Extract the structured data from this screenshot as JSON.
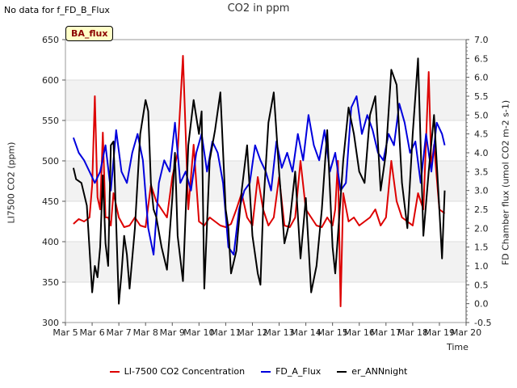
{
  "annotations": {
    "no_data": "No data for f_FD_B_Flux",
    "badge": "BA_flux"
  },
  "chart_data": {
    "type": "line",
    "title": "CO2 in ppm",
    "xlabel": "Time",
    "ylabel_left": "LI7500 CO2 (ppm)",
    "ylabel_right": "FD Chamber flux (umol CO2 m-2 s-1)",
    "x_ticks": [
      "Mar 5",
      "Mar 6",
      "Mar 7",
      "Mar 8",
      "Mar 9",
      "Mar 10",
      "Mar 11",
      "Mar 12",
      "Mar 13",
      "Mar 14",
      "Mar 15",
      "Mar 16",
      "Mar 17",
      "Mar 18",
      "Mar 19",
      "Mar 20"
    ],
    "x_range_days": [
      5,
      20
    ],
    "ylim_left": [
      300,
      650
    ],
    "yticks_left": [
      300,
      350,
      400,
      450,
      500,
      550,
      600,
      650
    ],
    "ylim_right": [
      -0.5,
      7.0
    ],
    "yticks_right": [
      "-0.5",
      "0.0",
      "0.5",
      "1.0",
      "1.5",
      "2.0",
      "2.5",
      "3.0",
      "3.5",
      "4.0",
      "4.5",
      "5.0",
      "5.5",
      "6.0",
      "6.5",
      "7.0"
    ],
    "grid": true,
    "legend_position": "bottom",
    "series": [
      {
        "name": "LI-7500 CO2 Concentration",
        "axis": "left",
        "color": "#dd0000",
        "x": [
          5.3,
          5.5,
          5.7,
          5.9,
          6.0,
          6.1,
          6.2,
          6.3,
          6.4,
          6.5,
          6.6,
          6.7,
          6.8,
          7.0,
          7.2,
          7.4,
          7.6,
          7.8,
          8.0,
          8.2,
          8.4,
          8.6,
          8.8,
          9.0,
          9.2,
          9.4,
          9.6,
          9.8,
          10.0,
          10.2,
          10.4,
          10.6,
          10.8,
          11.0,
          11.2,
          11.4,
          11.6,
          11.8,
          12.0,
          12.2,
          12.4,
          12.6,
          12.8,
          13.0,
          13.2,
          13.4,
          13.6,
          13.8,
          14.0,
          14.2,
          14.4,
          14.6,
          14.8,
          15.0,
          15.1,
          15.2,
          15.3,
          15.4,
          15.6,
          15.8,
          16.0,
          16.2,
          16.4,
          16.6,
          16.8,
          17.0,
          17.2,
          17.4,
          17.6,
          17.8,
          18.0,
          18.2,
          18.4,
          18.6,
          18.7,
          18.8,
          19.0,
          19.2
        ],
        "y": [
          422,
          428,
          425,
          430,
          470,
          580,
          455,
          440,
          535,
          430,
          430,
          420,
          460,
          430,
          418,
          420,
          430,
          420,
          418,
          470,
          450,
          440,
          430,
          480,
          510,
          630,
          440,
          520,
          425,
          420,
          430,
          425,
          420,
          418,
          422,
          440,
          460,
          430,
          420,
          480,
          440,
          420,
          430,
          480,
          420,
          418,
          430,
          500,
          440,
          430,
          420,
          418,
          430,
          420,
          440,
          500,
          320,
          460,
          425,
          430,
          420,
          425,
          430,
          440,
          420,
          430,
          500,
          450,
          430,
          425,
          420,
          460,
          440,
          610,
          490,
          520,
          440,
          435
        ]
      },
      {
        "name": "FD_A_Flux",
        "axis": "right",
        "color": "#0000dd",
        "x": [
          5.3,
          5.5,
          5.7,
          5.9,
          6.1,
          6.3,
          6.5,
          6.7,
          6.9,
          7.1,
          7.3,
          7.5,
          7.7,
          7.9,
          8.1,
          8.3,
          8.5,
          8.7,
          8.9,
          9.1,
          9.3,
          9.5,
          9.7,
          9.9,
          10.1,
          10.3,
          10.5,
          10.7,
          10.9,
          11.1,
          11.3,
          11.5,
          11.7,
          11.9,
          12.1,
          12.3,
          12.5,
          12.7,
          12.9,
          13.1,
          13.3,
          13.5,
          13.7,
          13.9,
          14.1,
          14.3,
          14.5,
          14.7,
          14.9,
          15.1,
          15.3,
          15.5,
          15.7,
          15.9,
          16.1,
          16.3,
          16.5,
          16.7,
          16.9,
          17.1,
          17.3,
          17.5,
          17.7,
          17.9,
          18.1,
          18.3,
          18.5,
          18.7,
          18.9,
          19.1,
          19.2
        ],
        "y": [
          4.4,
          4.0,
          3.8,
          3.5,
          3.2,
          3.5,
          4.2,
          3.0,
          4.6,
          3.5,
          3.2,
          4.0,
          4.5,
          3.8,
          2.0,
          1.3,
          3.2,
          3.8,
          3.5,
          4.8,
          3.2,
          3.5,
          3.0,
          4.0,
          4.5,
          3.5,
          4.3,
          4.0,
          3.2,
          1.5,
          1.3,
          2.5,
          3.0,
          3.2,
          4.2,
          3.8,
          3.5,
          3.0,
          4.3,
          3.6,
          4.0,
          3.5,
          4.5,
          3.8,
          5.0,
          4.2,
          3.8,
          4.6,
          3.5,
          4.0,
          3.0,
          3.2,
          5.2,
          5.5,
          4.5,
          5.0,
          4.6,
          4.0,
          3.8,
          4.5,
          4.2,
          5.3,
          4.8,
          4.0,
          4.3,
          3.2,
          4.5,
          3.5,
          4.8,
          4.5,
          4.2
        ]
      },
      {
        "name": "er_ANNnight",
        "axis": "right",
        "color": "#000000",
        "x": [
          5.3,
          5.4,
          5.6,
          5.8,
          6.0,
          6.1,
          6.2,
          6.3,
          6.4,
          6.5,
          6.6,
          6.7,
          6.8,
          7.0,
          7.1,
          7.2,
          7.3,
          7.4,
          7.6,
          7.8,
          8.0,
          8.1,
          8.2,
          8.3,
          8.4,
          8.6,
          8.8,
          9.0,
          9.1,
          9.2,
          9.4,
          9.6,
          9.8,
          10.0,
          10.1,
          10.2,
          10.4,
          10.6,
          10.8,
          11.0,
          11.1,
          11.2,
          11.4,
          11.6,
          11.8,
          12.0,
          12.2,
          12.3,
          12.4,
          12.6,
          12.8,
          13.0,
          13.2,
          13.4,
          13.6,
          13.8,
          14.0,
          14.2,
          14.4,
          14.6,
          14.8,
          15.0,
          15.1,
          15.2,
          15.4,
          15.6,
          15.8,
          16.0,
          16.2,
          16.4,
          16.6,
          16.8,
          17.0,
          17.2,
          17.4,
          17.6,
          17.8,
          18.0,
          18.2,
          18.4,
          18.6,
          18.8,
          19.0,
          19.1,
          19.2
        ],
        "y": [
          3.6,
          3.3,
          3.2,
          2.6,
          0.3,
          1.0,
          0.7,
          1.5,
          3.4,
          1.6,
          1.0,
          4.2,
          4.3,
          0.0,
          0.8,
          1.8,
          1.3,
          0.4,
          2.0,
          4.5,
          5.4,
          5.1,
          3.2,
          2.5,
          2.3,
          1.5,
          0.9,
          2.8,
          4.0,
          1.8,
          0.6,
          4.2,
          5.4,
          4.5,
          5.1,
          0.4,
          3.8,
          4.6,
          5.6,
          2.5,
          2.0,
          0.8,
          1.4,
          3.0,
          4.2,
          1.8,
          0.8,
          0.5,
          2.5,
          4.8,
          5.6,
          3.5,
          1.6,
          2.2,
          3.5,
          1.2,
          2.8,
          0.3,
          1.0,
          2.5,
          4.6,
          1.5,
          0.8,
          1.8,
          3.8,
          5.2,
          4.5,
          3.5,
          3.2,
          5.0,
          5.5,
          3.0,
          4.0,
          6.2,
          5.8,
          3.2,
          2.0,
          4.5,
          6.5,
          1.8,
          3.5,
          5.0,
          2.5,
          1.2,
          3.0
        ]
      }
    ]
  },
  "legend": {
    "items": [
      {
        "label": "LI-7500 CO2 Concentration",
        "color": "#dd0000"
      },
      {
        "label": "FD_A_Flux",
        "color": "#0000dd"
      },
      {
        "label": "er_ANNnight",
        "color": "#000000"
      }
    ]
  }
}
